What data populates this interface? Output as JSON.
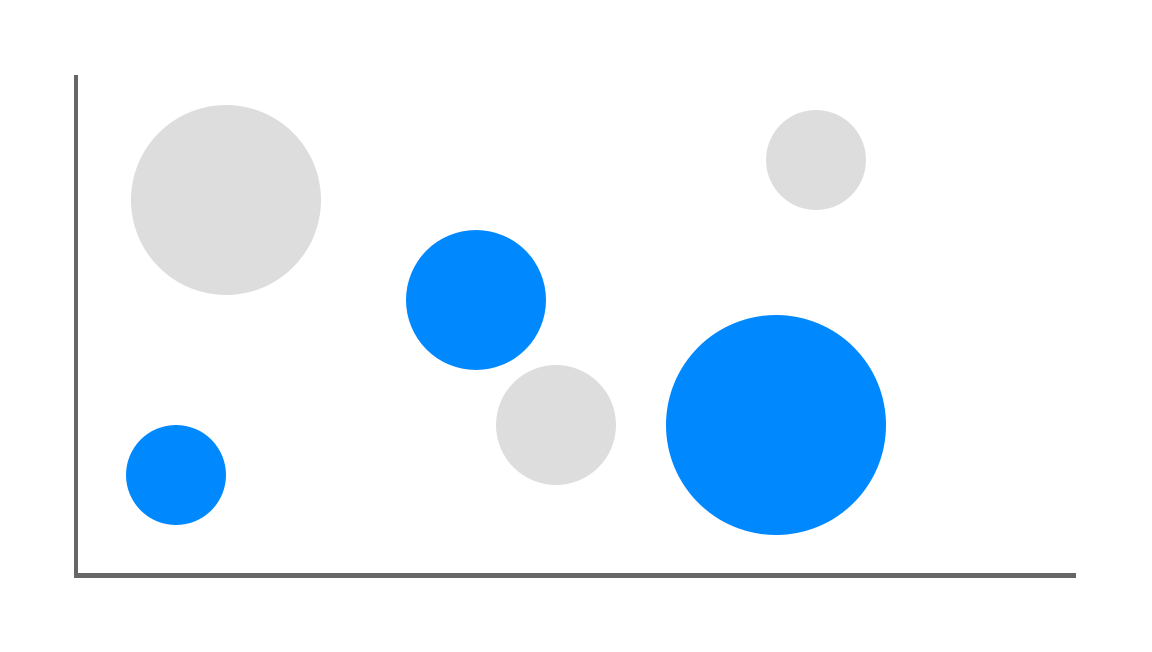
{
  "chart_data": {
    "type": "scatter",
    "variant": "bubble",
    "title": "",
    "xlabel": "",
    "ylabel": "",
    "grid": false,
    "legend": "none",
    "xlim": [
      0,
      10
    ],
    "ylim": [
      0,
      10
    ],
    "axis_color": "#666666",
    "series": [
      {
        "color": "#0088ff",
        "points": [
          {
            "x": 1.0,
            "y": 2.0,
            "size": 1.0
          },
          {
            "x": 4.0,
            "y": 5.5,
            "size": 1.4
          },
          {
            "x": 7.0,
            "y": 3.0,
            "size": 2.2
          }
        ]
      },
      {
        "color": "#dddddd",
        "points": [
          {
            "x": 1.5,
            "y": 7.5,
            "size": 1.9
          },
          {
            "x": 4.8,
            "y": 3.0,
            "size": 1.2
          },
          {
            "x": 7.4,
            "y": 8.3,
            "size": 1.0
          }
        ]
      }
    ]
  }
}
